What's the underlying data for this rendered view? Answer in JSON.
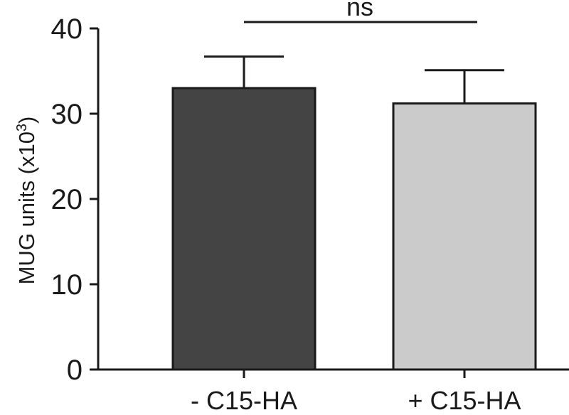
{
  "chart_data": {
    "type": "bar",
    "categories": [
      "- C15-HA",
      "+ C15-HA"
    ],
    "values": [
      33.0,
      31.2
    ],
    "errors": [
      3.7,
      3.9
    ],
    "bar_colors": [
      "#444444",
      "#cbcbcb"
    ],
    "ylabel": "MUG units (x10",
    "ylabel_sup": "3",
    "ylabel_close": ")",
    "ylim": [
      0,
      40
    ],
    "yticks": [
      0,
      10,
      20,
      30,
      40
    ],
    "ytick_labels": [
      "0",
      "10",
      "20",
      "30",
      "40"
    ],
    "significance": {
      "label": "ns",
      "between": [
        0,
        1
      ]
    }
  }
}
